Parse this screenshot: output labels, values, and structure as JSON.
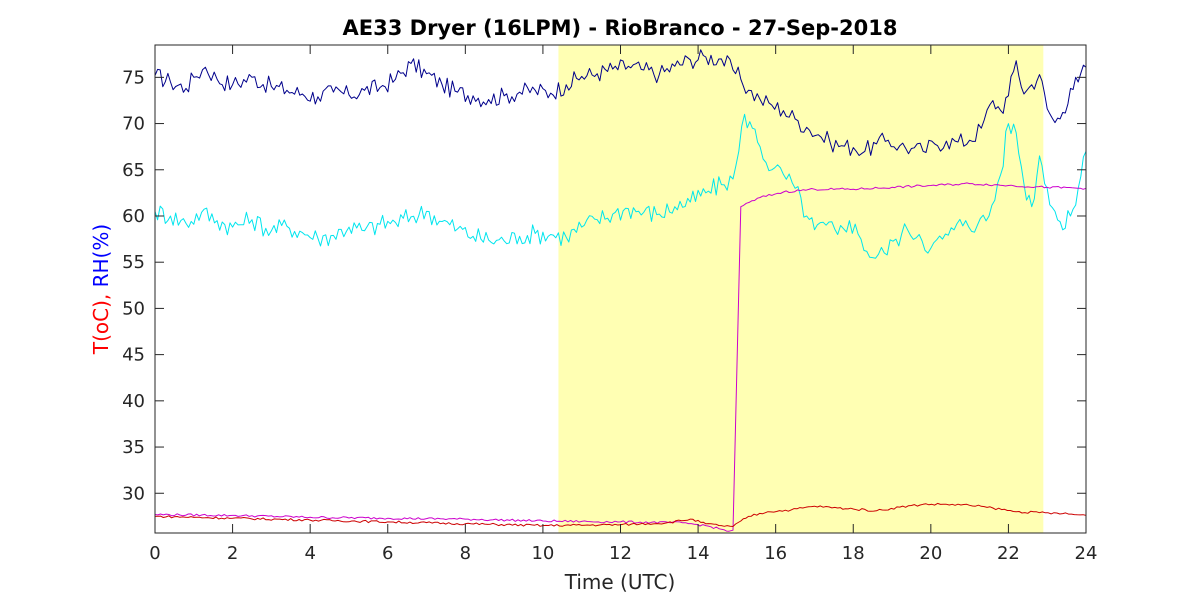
{
  "chart_data": {
    "type": "line",
    "title": "AE33 Dryer (16LPM)  - RioBranco - 27-Sep-2018",
    "xlabel": "Time (UTC)",
    "ylabel": {
      "parts": [
        {
          "text": "T(oC),",
          "color": "#ff0000"
        },
        {
          "text": " RH(%)",
          "color": "#0000ff"
        }
      ]
    },
    "xlim": [
      0,
      24
    ],
    "ylim": [
      25.7,
      78.5
    ],
    "xticks": [
      0,
      2,
      4,
      6,
      8,
      10,
      12,
      14,
      16,
      18,
      20,
      22,
      24
    ],
    "yticks": [
      30,
      35,
      40,
      45,
      50,
      55,
      60,
      65,
      70,
      75
    ],
    "grid": false,
    "shaded_region": {
      "x": [
        10.4,
        22.9
      ],
      "color": "#ffffb3"
    },
    "series": [
      {
        "color": "#00008b",
        "x": [
          0,
          0.4,
          0.8,
          1.0,
          1.3,
          1.6,
          2.0,
          2.5,
          3.0,
          3.4,
          3.8,
          4.2,
          4.6,
          5.0,
          5.4,
          5.8,
          6.2,
          6.6,
          7.0,
          7.4,
          7.8,
          8.2,
          8.6,
          9.0,
          9.4,
          9.8,
          10.2,
          10.6,
          11.0,
          11.4,
          11.8,
          12.2,
          12.6,
          13.0,
          13.4,
          13.8,
          14.2,
          14.6,
          14.9,
          15.1,
          15.3,
          15.6,
          15.9,
          16.2,
          16.5,
          16.8,
          17.1,
          17.4,
          17.7,
          18.0,
          18.3,
          18.6,
          18.9,
          19.2,
          19.5,
          19.8,
          20.1,
          20.4,
          20.7,
          21.0,
          21.3,
          21.6,
          21.8,
          22.0,
          22.2,
          22.4,
          22.6,
          22.8,
          23.0,
          23.2,
          23.4,
          23.6,
          23.8,
          24.0
        ],
        "y": [
          75.2,
          74.5,
          73.8,
          75.0,
          76.1,
          74.8,
          74.2,
          75.0,
          74.0,
          73.6,
          73.2,
          72.9,
          73.4,
          73.1,
          73.6,
          73.9,
          74.8,
          76.5,
          75.4,
          74.2,
          73.4,
          73.0,
          72.6,
          73.0,
          73.4,
          73.6,
          73.3,
          74.2,
          75.1,
          75.4,
          75.9,
          76.2,
          75.8,
          75.3,
          76.2,
          76.9,
          77.2,
          77.0,
          75.8,
          74.8,
          73.6,
          72.6,
          72.0,
          71.4,
          70.5,
          69.6,
          68.8,
          68.0,
          67.6,
          67.4,
          67.0,
          67.8,
          68.2,
          67.6,
          67.3,
          67.0,
          67.8,
          68.1,
          68.0,
          68.2,
          69.5,
          72.5,
          71.4,
          73.0,
          76.8,
          73.2,
          74.2,
          75.3,
          71.6,
          70.1,
          71.2,
          73.8,
          74.5,
          76.1
        ]
      },
      {
        "color": "#00e5ee",
        "x": [
          0,
          0.4,
          0.8,
          1.2,
          1.6,
          2.0,
          2.5,
          3.0,
          3.4,
          3.8,
          4.2,
          4.6,
          5.0,
          5.4,
          5.8,
          6.2,
          6.6,
          7.0,
          7.4,
          7.8,
          8.2,
          8.6,
          9.0,
          9.4,
          9.8,
          10.2,
          10.6,
          11.0,
          11.4,
          11.8,
          12.2,
          12.6,
          13.0,
          13.4,
          13.8,
          14.2,
          14.6,
          14.9,
          15.05,
          15.2,
          15.4,
          15.6,
          15.9,
          16.2,
          16.5,
          16.8,
          17.0,
          17.3,
          17.6,
          17.9,
          18.2,
          18.5,
          18.8,
          19.1,
          19.4,
          19.7,
          20.0,
          20.3,
          20.6,
          20.9,
          21.2,
          21.5,
          21.8,
          22.0,
          22.2,
          22.4,
          22.6,
          22.8,
          23.0,
          23.2,
          23.4,
          23.6,
          23.8,
          24.0
        ],
        "y": [
          60.5,
          60.0,
          59.2,
          60.4,
          59.5,
          58.8,
          59.6,
          58.4,
          58.9,
          58.2,
          57.6,
          57.9,
          58.8,
          58.4,
          59.1,
          59.3,
          59.9,
          60.5,
          59.4,
          58.6,
          57.8,
          57.4,
          57.3,
          57.8,
          58.1,
          58.0,
          57.7,
          58.8,
          59.6,
          60.2,
          60.8,
          60.4,
          60.2,
          61.0,
          61.5,
          62.5,
          63.4,
          64.0,
          67.0,
          71.0,
          69.5,
          67.5,
          65.0,
          64.5,
          63.0,
          60.0,
          58.5,
          59.0,
          58.0,
          59.5,
          57.5,
          55.5,
          56.0,
          57.5,
          58.5,
          58.0,
          56.5,
          57.5,
          58.5,
          59.5,
          59.0,
          60.0,
          64.5,
          70.0,
          69.0,
          63.5,
          61.0,
          66.5,
          63.0,
          60.5,
          58.5,
          60.0,
          63.0,
          67.0
        ]
      },
      {
        "color": "#cc00cc",
        "x": [
          0,
          2,
          4,
          6,
          8,
          10,
          12,
          13.6,
          14.2,
          14.6,
          14.8,
          14.9,
          15.1,
          15.6,
          16.2,
          17.0,
          18.0,
          19.0,
          20.0,
          21.0,
          22.0,
          23.0,
          24.0
        ],
        "y": [
          27.7,
          27.6,
          27.4,
          27.3,
          27.2,
          27.0,
          26.9,
          26.8,
          26.5,
          26.1,
          25.9,
          26.0,
          61.0,
          62.0,
          62.6,
          62.9,
          62.9,
          63.1,
          63.3,
          63.5,
          63.3,
          63.1,
          63.0
        ]
      },
      {
        "color": "#cc0000",
        "x": [
          0,
          2,
          4,
          6,
          8,
          10,
          12,
          13.2,
          13.8,
          14.2,
          14.6,
          14.9,
          15.3,
          15.8,
          16.4,
          17.0,
          17.6,
          18.0,
          18.6,
          19.2,
          19.8,
          20.4,
          21.0,
          21.6,
          22.2,
          22.8,
          23.4,
          24.0
        ],
        "y": [
          27.5,
          27.3,
          27.1,
          26.9,
          26.7,
          26.5,
          26.6,
          26.8,
          27.2,
          26.7,
          26.5,
          26.4,
          27.5,
          28.0,
          28.2,
          28.6,
          28.4,
          28.3,
          28.1,
          28.5,
          28.8,
          28.8,
          28.7,
          28.4,
          28.0,
          27.9,
          27.8,
          27.6
        ]
      }
    ]
  }
}
